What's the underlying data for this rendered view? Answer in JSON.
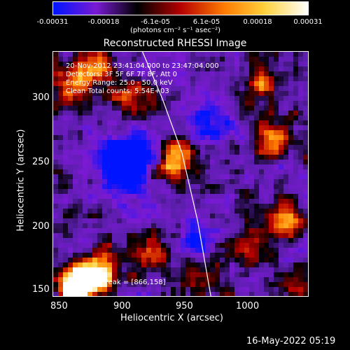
{
  "colorbar": {
    "ticks": [
      "-0.00031",
      "-0.00018",
      "-6.1e-05",
      "6.1e-05",
      "0.00018",
      "0.00031"
    ],
    "unit_label": "(photons cm⁻² s⁻¹ asec⁻²)",
    "colors": [
      "#0014ff",
      "#7a1ad2",
      "#000000",
      "#b40000",
      "#ff7a00",
      "#ffd23c",
      "#ffffff"
    ]
  },
  "plot": {
    "title": "Reconstructed RHESSI Image",
    "info_lines": [
      "20-Nov-2012 23:41:04.000 to 23:47:04.000",
      "Detectors: 3F 5F 6F 7F 8F, Att 0",
      "Energy Range: 25.0 - 50.0 keV",
      "Clean     Total counts: 5.54E+03"
    ],
    "peak_label": "Position of Peak = [866,158]",
    "xlabel": "Heliocentric X (arcsec)",
    "ylabel": "Heliocentric Y (arcsec)",
    "xticks": [
      "850",
      "900",
      "950",
      "1000"
    ],
    "yticks": [
      "300",
      "250",
      "200",
      "150"
    ]
  },
  "footer": {
    "timestamp": "16-May-2022 05:19"
  },
  "chart_data": {
    "type": "heatmap",
    "title": "Reconstructed RHESSI Image",
    "xlabel": "Heliocentric X (arcsec)",
    "ylabel": "Heliocentric Y (arcsec)",
    "xlim": [
      842,
      1036
    ],
    "ylim": [
      145,
      324
    ],
    "colorbar_range": [
      -0.00031,
      0.00031
    ],
    "limb_curve": {
      "x": [
        910,
        925,
        940,
        952,
        962
      ],
      "y": [
        324,
        290,
        250,
        200,
        145
      ]
    },
    "peak": {
      "x": 866,
      "y": 158
    }
  }
}
